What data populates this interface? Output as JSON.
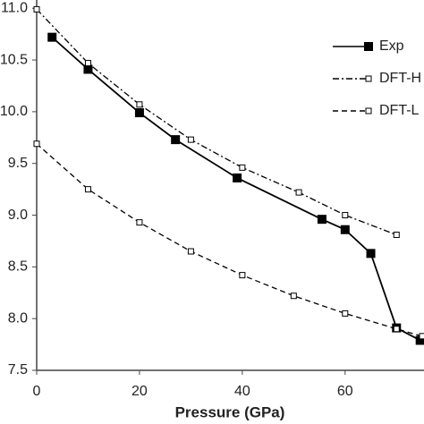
{
  "chart_data": {
    "type": "line",
    "x_label": "Pressure (GPa)",
    "xlim": [
      0,
      75
    ],
    "xticks": [
      0,
      20,
      40,
      60
    ],
    "ylim": [
      7.5,
      11.08
    ],
    "yticks": [
      {
        "value": 7.5,
        "label": "7.5"
      },
      {
        "value": 8,
        "label": "8.0"
      },
      {
        "value": 8.5,
        "label": "8.5"
      },
      {
        "value": 9,
        "label": "9.0"
      },
      {
        "value": 9.5,
        "label": "9.5"
      },
      {
        "value": 10,
        "label": "10.0"
      },
      {
        "value": 10.5,
        "label": "10.5"
      },
      {
        "value": 11,
        "label": "11.0"
      }
    ],
    "legend": "upper right",
    "series": [
      {
        "name": "Exp",
        "color": "#000000",
        "dash": "solid",
        "marker": "filled",
        "x": [
          3,
          10,
          20,
          27,
          39,
          55.5,
          60,
          65,
          70,
          74.6
        ],
        "values": [
          10.72,
          10.41,
          9.99,
          9.73,
          9.36,
          8.96,
          8.86,
          8.63,
          7.91,
          7.79
        ]
      },
      {
        "name": "DFT-H",
        "color": "#000000",
        "dash": "dashdot",
        "marker": "open",
        "x": [
          0,
          10,
          20,
          30,
          40,
          51,
          60,
          70
        ],
        "values": [
          10.99,
          10.47,
          10.07,
          9.73,
          9.46,
          9.22,
          9.0,
          8.81
        ]
      },
      {
        "name": "DFT-L",
        "color": "#000000",
        "dash": "dashed",
        "marker": "open",
        "x": [
          0,
          10,
          20,
          30,
          40,
          50,
          60,
          70,
          75
        ],
        "values": [
          9.69,
          9.25,
          8.93,
          8.65,
          8.42,
          8.22,
          8.05,
          7.9,
          7.83
        ]
      }
    ]
  }
}
